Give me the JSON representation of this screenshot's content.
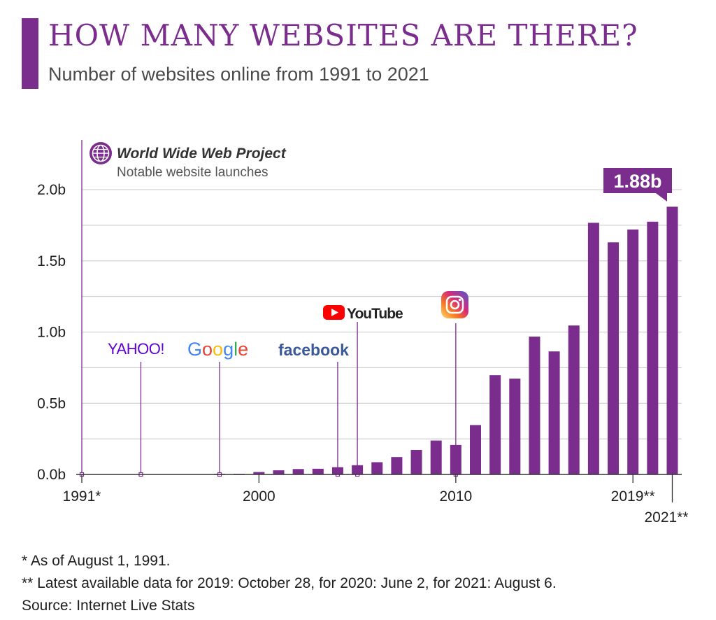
{
  "header": {
    "title": "HOW MANY WEBSITES ARE THERE?",
    "subtitle": "Number of websites online from 1991 to 2021"
  },
  "legend": {
    "icon": "globe-icon",
    "title": "World Wide Web Project",
    "subtitle": "Notable website launches"
  },
  "callout": {
    "label": "1.88b"
  },
  "footnotes": {
    "note1": "*  As of August 1, 1991.",
    "note2": "** Latest available data for 2019: October 28, for 2020: June 2, for 2021: August 6.",
    "source": "Source: Internet Live Stats"
  },
  "colors": {
    "bar": "#7b2d8e",
    "accent": "#7b2d8e",
    "grid": "#c8c8c8"
  },
  "chart_data": {
    "type": "bar",
    "title": "HOW MANY WEBSITES ARE THERE?",
    "subtitle": "Number of websites online from 1991 to 2021",
    "xlabel": "",
    "ylabel": "",
    "ylim": [
      0,
      2.0
    ],
    "yticks": [
      "0.0b",
      "0.5b",
      "1.0b",
      "1.5b",
      "2.0b"
    ],
    "xticks": [
      "1991*",
      "2000",
      "2010",
      "2019**",
      "2021**"
    ],
    "grid": true,
    "categories": [
      "1991",
      "1992",
      "1993",
      "1994",
      "1995",
      "1996",
      "1997",
      "1998",
      "1999",
      "2000",
      "2001",
      "2002",
      "2003",
      "2004",
      "2005",
      "2006",
      "2007",
      "2008",
      "2009",
      "2010",
      "2011",
      "2012",
      "2013",
      "2014",
      "2015",
      "2016",
      "2017",
      "2018",
      "2019",
      "2020",
      "2021"
    ],
    "values": [
      0.0,
      0.0,
      0.0,
      0.0,
      0.0,
      0.0,
      0.0,
      0.002,
      0.003,
      0.017,
      0.029,
      0.038,
      0.04,
      0.051,
      0.065,
      0.086,
      0.122,
      0.172,
      0.238,
      0.207,
      0.347,
      0.697,
      0.673,
      0.968,
      0.864,
      1.046,
      1.767,
      1.63,
      1.72,
      1.775,
      1.88
    ],
    "launches": [
      {
        "year": "1991",
        "label": "World Wide Web Project"
      },
      {
        "year": "1994",
        "label": "YAHOO!"
      },
      {
        "year": "1998",
        "label": "Google"
      },
      {
        "year": "2004",
        "label": "facebook"
      },
      {
        "year": "2005",
        "label": "YouTube"
      },
      {
        "year": "2010",
        "label": "Instagram"
      }
    ]
  }
}
